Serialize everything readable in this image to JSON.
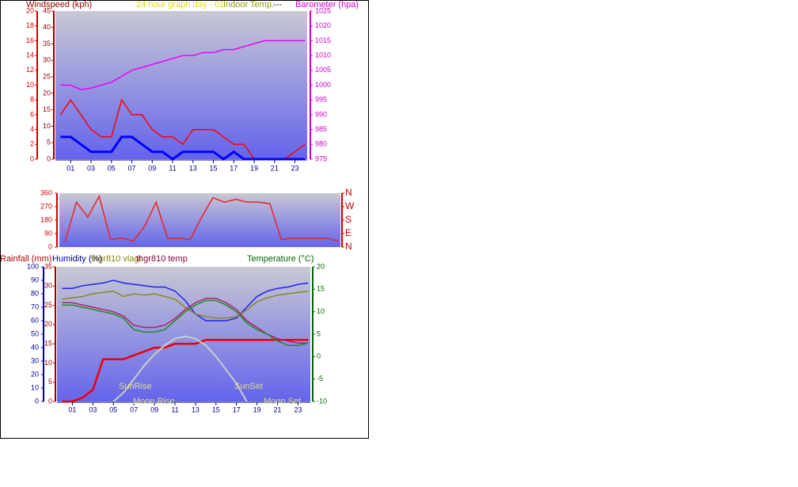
{
  "chart_data": [
    {
      "type": "line",
      "title": "24 hour graph day - 01",
      "annotations": [
        "Indoor Temp.",
        "---"
      ],
      "y_label": "Windspeed (kph)",
      "y2_label": "Barometer (hpa)",
      "x": [
        0,
        1,
        2,
        3,
        4,
        5,
        6,
        7,
        8,
        9,
        10,
        11,
        12,
        13,
        14,
        15,
        16,
        17,
        18,
        19,
        20,
        21,
        22,
        23,
        24
      ],
      "xlim": [
        -0.5,
        24.2
      ],
      "xticks": [
        {
          "value": 1,
          "label": "01"
        },
        {
          "value": 3,
          "label": "03"
        },
        {
          "value": 5,
          "label": "05"
        },
        {
          "value": 7,
          "label": "07"
        },
        {
          "value": 9,
          "label": "09"
        },
        {
          "value": 11,
          "label": "11"
        },
        {
          "value": 13,
          "label": "13"
        },
        {
          "value": 15,
          "label": "15"
        },
        {
          "value": 17,
          "label": "17"
        },
        {
          "value": 19,
          "label": "19"
        },
        {
          "value": 21,
          "label": "21"
        },
        {
          "value": 23,
          "label": "23"
        }
      ],
      "ylim": [
        0,
        45
      ],
      "yticks": [
        0,
        5,
        10,
        15,
        20,
        25,
        30,
        35,
        40,
        45
      ],
      "y3lim": [
        0,
        20
      ],
      "y3ticks": [
        0,
        2,
        4,
        6,
        8,
        10,
        12,
        14,
        16,
        18,
        20
      ],
      "y2lim": [
        975,
        1025
      ],
      "y2ticks": [
        975,
        980,
        985,
        990,
        995,
        1000,
        1005,
        1010,
        1015,
        1020,
        1025
      ],
      "series": [
        {
          "color": "#ff0000",
          "axis": "y3",
          "width": 1.5,
          "values": [
            6,
            8,
            6,
            4,
            3,
            3,
            8,
            6,
            6,
            4,
            3,
            3,
            2,
            4,
            4,
            4,
            3,
            2,
            2,
            0,
            0,
            0,
            0,
            1,
            2
          ]
        },
        {
          "color": "#0000ff",
          "axis": "y3",
          "width": 3,
          "values": [
            3,
            3,
            2,
            1,
            1,
            1,
            3,
            3,
            2,
            1,
            1,
            0,
            1,
            1,
            1,
            1,
            0,
            1,
            0,
            0,
            0,
            0,
            0,
            0,
            0
          ]
        },
        {
          "color": "#ee00ee",
          "axis": "y2",
          "width": 1.5,
          "values": [
            1000,
            1000,
            998.5,
            999,
            1000,
            1001,
            1003,
            1005,
            1006,
            1007,
            1008,
            1009,
            1010,
            1010,
            1011,
            1011,
            1012,
            1012,
            1013,
            1014,
            1015,
            1015,
            1015,
            1015,
            1015
          ]
        }
      ]
    },
    {
      "type": "line",
      "x": [
        0,
        1,
        2,
        3,
        4,
        5,
        6,
        7,
        8,
        9,
        10,
        11,
        12,
        13,
        14,
        15,
        16,
        17,
        18,
        19,
        20,
        21,
        22,
        23,
        24
      ],
      "xlim": [
        -0.5,
        24.2
      ],
      "ylim": [
        0,
        360
      ],
      "yticks": [
        0,
        90,
        180,
        270,
        360
      ],
      "y2lim": [
        0,
        360
      ],
      "y2ticks": [
        {
          "value": 0,
          "label": "N"
        },
        {
          "value": 90,
          "label": "E"
        },
        {
          "value": 180,
          "label": "S"
        },
        {
          "value": 270,
          "label": "W"
        },
        {
          "value": 360,
          "label": "N"
        }
      ],
      "series": [
        {
          "color": "#ee2222",
          "width": 1.5,
          "values": [
            40,
            300,
            200,
            340,
            50,
            60,
            40,
            140,
            300,
            60,
            60,
            50,
            200,
            330,
            300,
            320,
            300,
            300,
            290,
            50,
            60,
            60,
            60,
            60,
            40
          ]
        }
      ]
    },
    {
      "type": "line",
      "x": [
        0,
        1,
        2,
        3,
        4,
        5,
        6,
        7,
        8,
        9,
        10,
        11,
        12,
        13,
        14,
        15,
        16,
        17,
        18,
        19,
        20,
        21,
        22,
        23,
        24
      ],
      "xlim": [
        -0.5,
        24.2
      ],
      "xticks": [
        {
          "value": 1,
          "label": "01"
        },
        {
          "value": 3,
          "label": "03"
        },
        {
          "value": 5,
          "label": "05"
        },
        {
          "value": 7,
          "label": "07"
        },
        {
          "value": 9,
          "label": "09"
        },
        {
          "value": 11,
          "label": "11"
        },
        {
          "value": 13,
          "label": "13"
        },
        {
          "value": 15,
          "label": "15"
        },
        {
          "value": 17,
          "label": "17"
        },
        {
          "value": 19,
          "label": "19"
        },
        {
          "value": 21,
          "label": "21"
        },
        {
          "value": 23,
          "label": "23"
        }
      ],
      "ylim": [
        0,
        35
      ],
      "yticks": [
        0,
        5,
        10,
        15,
        20,
        25,
        30,
        35
      ],
      "y3lim": [
        0,
        100
      ],
      "y3ticks": [
        0,
        10,
        20,
        30,
        40,
        50,
        60,
        70,
        80,
        90,
        100
      ],
      "y2lim": [
        -10,
        20
      ],
      "y2ticks": [
        -10,
        -5,
        0,
        5,
        10,
        15,
        20
      ],
      "annotations": [
        "SunRise",
        "SunSet",
        "Moon Rise",
        "Moon Set"
      ],
      "series": [
        {
          "name": "Rainfall (mm)",
          "color": "#ee0000",
          "width": 2.5,
          "values": [
            0,
            0,
            1,
            3,
            11,
            11,
            11,
            12,
            13,
            14,
            14,
            15,
            15,
            15,
            16,
            16,
            16,
            16,
            16,
            16,
            16,
            16,
            16,
            16,
            16
          ]
        },
        {
          "name": "Humidity (%)",
          "color": "#2222ee",
          "axis": "y3",
          "width": 1.5,
          "values": [
            84,
            84,
            86,
            87,
            88,
            90,
            88,
            87,
            86,
            85,
            85,
            82,
            75,
            65,
            60,
            60,
            60,
            62,
            70,
            78,
            82,
            84,
            85,
            87,
            88
          ]
        },
        {
          "name": "thgr810 vlagt",
          "color": "#888822",
          "axis": "y3",
          "width": 1.5,
          "values": [
            76,
            77,
            78,
            80,
            81,
            82,
            78,
            80,
            79,
            80,
            78,
            76,
            70,
            65,
            63,
            62,
            62,
            63,
            68,
            74,
            77,
            79,
            80,
            81,
            82
          ]
        },
        {
          "name": "thgr810 temp",
          "color": "#aa2266",
          "axis": "y2",
          "width": 1.5,
          "values": [
            12,
            12,
            11.5,
            11,
            10.5,
            10,
            9,
            7,
            6.5,
            6.5,
            7,
            8.5,
            10.5,
            12,
            13,
            13,
            12,
            10.5,
            8,
            6.5,
            5,
            4,
            3.5,
            3,
            3
          ]
        },
        {
          "name": "Temperature (°C)",
          "color": "#228822",
          "axis": "y2",
          "width": 1.5,
          "values": [
            11.5,
            11.5,
            11,
            10.5,
            10,
            9.5,
            8.5,
            6,
            5.5,
            5.5,
            6,
            8,
            10,
            11.5,
            12.5,
            12.5,
            11.5,
            10,
            7.5,
            6,
            5,
            3.5,
            2.5,
            2.5,
            3
          ]
        },
        {
          "color": "#cccccc",
          "axis": "y2",
          "width": 2,
          "values": [
            null,
            null,
            null,
            null,
            null,
            -10,
            -8,
            -5,
            -2,
            0.5,
            2.5,
            4,
            4.5,
            4,
            2.5,
            0,
            -3,
            -6,
            -10,
            null,
            null,
            null,
            null,
            null,
            null
          ]
        }
      ]
    }
  ]
}
